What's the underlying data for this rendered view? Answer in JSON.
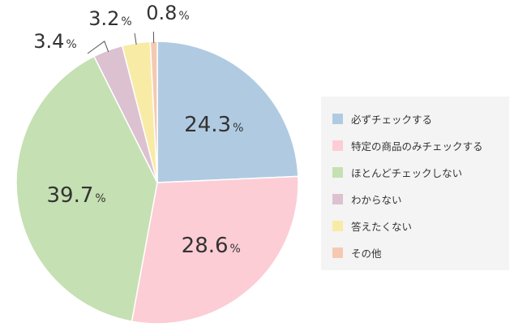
{
  "chart_data": {
    "type": "pie",
    "title": "",
    "start_angle_deg": 0,
    "direction": "clockwise",
    "legend_position": "right",
    "unit": "%",
    "slices": [
      {
        "label": "必ずチェックする",
        "value": 24.3,
        "value_text": "24.3",
        "color": "#b0cbe1"
      },
      {
        "label": "特定の商品のみチェックする",
        "value": 28.6,
        "value_text": "28.6",
        "color": "#fccdd5"
      },
      {
        "label": "ほとんどチェックしない",
        "value": 39.7,
        "value_text": "39.7",
        "color": "#c5e0b2"
      },
      {
        "label": "わからない",
        "value": 3.4,
        "value_text": "3.4",
        "color": "#dcc1d1"
      },
      {
        "label": "答えたくない",
        "value": 3.2,
        "value_text": "3.2",
        "color": "#f8eba6"
      },
      {
        "label": "その他",
        "value": 0.8,
        "value_text": "0.8",
        "color": "#f5c9b1"
      }
    ]
  }
}
